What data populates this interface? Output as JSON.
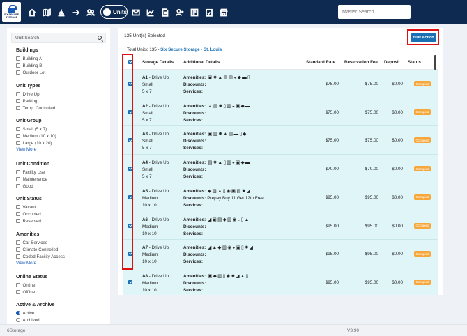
{
  "brand": {
    "logo_text": "SIX SECURE STORAGE"
  },
  "nav": {
    "active_label": "Units",
    "search_placeholder": "Master Search..."
  },
  "sidebar": {
    "search_placeholder": "Unit Search",
    "groups": [
      {
        "title": "Buildings",
        "options": [
          "Building A",
          "Building B",
          "Outdoor Lot"
        ]
      },
      {
        "title": "Unit Types",
        "options": [
          "Drive Up",
          "Parking",
          "Temp. Controlled"
        ]
      },
      {
        "title": "Unit Group",
        "options": [
          "Small (5 x 7)",
          "Medium (10 x 10)",
          "Large (10 x 20)"
        ],
        "more": "View More"
      },
      {
        "title": "Unit Condition",
        "options": [
          "Facility Use",
          "Maintenance",
          "Good"
        ]
      },
      {
        "title": "Unit Status",
        "options": [
          "Vacant",
          "Occupied",
          "Reserved"
        ]
      },
      {
        "title": "Amenities",
        "options": [
          "Car Services",
          "Climate Controlled",
          "Coded Facility Access"
        ],
        "more": "View More"
      },
      {
        "title": "Online Status",
        "options": [
          "Online",
          "Offline"
        ]
      },
      {
        "title": "Active & Archive",
        "options": [
          "Active",
          "Archived"
        ],
        "selected": "Active"
      }
    ]
  },
  "main": {
    "selected_text": "135 Unit(s) Selected",
    "bulk_action_label": "Bulk Action",
    "totals_prefix": "Total Units: 135 - ",
    "totals_location": "Six Secure Storage - St. Louis",
    "columns": {
      "storage": "Storage Details",
      "additional": "Additional Details",
      "standard_rate": "Standard Rate",
      "reservation_fee": "Reservation Fee",
      "deposit": "Deposit",
      "status": "Status"
    },
    "detail_labels": {
      "amenities": "Amenities:",
      "discounts": "Discounts:",
      "services": "Services:"
    },
    "rows": [
      {
        "id": "A1",
        "type": " - Drive Up",
        "group": "Small",
        "size": "5 x 7",
        "amenity_icons": "▣✹▲▤▥◒◆▬▯",
        "discounts": "",
        "standard_rate": "$75.00",
        "reservation_fee": "$75.00",
        "deposit": "$0.00",
        "status": "Occupied"
      },
      {
        "id": "A2",
        "type": " - Drive Up",
        "group": "Small",
        "size": "5 x 7",
        "amenity_icons": "▲▤✹▯▥◒▣◆▬",
        "discounts": "",
        "standard_rate": "$75.00",
        "reservation_fee": "$75.00",
        "deposit": "$0.00",
        "status": "Occupied"
      },
      {
        "id": "A3",
        "type": " - Drive Up",
        "group": "Small",
        "size": "5 x 7",
        "amenity_icons": "▣▥✹▲▤▬▯◆",
        "discounts": "",
        "standard_rate": "$75.00",
        "reservation_fee": "$75.00",
        "deposit": "$0.00",
        "status": "Occupied"
      },
      {
        "id": "A4",
        "type": " - Drive Up",
        "group": "Small",
        "size": "5 x 7",
        "amenity_icons": "▤✹▲▯▥◒▣◆▬",
        "discounts": "",
        "standard_rate": "$70.00",
        "reservation_fee": "$70.00",
        "deposit": "$0.00",
        "status": "Occupied"
      },
      {
        "id": "A5",
        "type": " - Drive Up",
        "group": "Medium",
        "size": "10 x 10",
        "amenity_icons": "◆▥▲▯◉▣▤✹◢",
        "discounts": "Prepay Buy 11 Get 12th Free",
        "standard_rate": "$95.00",
        "reservation_fee": "$95.00",
        "deposit": "$0.00",
        "status": "Occupied"
      },
      {
        "id": "A6",
        "type": " - Drive Up",
        "group": "Medium",
        "size": "10 x 10",
        "amenity_icons": "◢▣▤◆▥◉◒▯▲",
        "discounts": "",
        "standard_rate": "$95.00",
        "reservation_fee": "$95.00",
        "deposit": "$0.00",
        "status": "Occupied"
      },
      {
        "id": "A7",
        "type": " - Drive Up",
        "group": "Medium",
        "size": "10 x 10",
        "amenity_icons": "◢▲◆▥◉◒▣▯✹◢",
        "discounts": "",
        "standard_rate": "$95.00",
        "reservation_fee": "$95.00",
        "deposit": "$0.00",
        "status": "Occupied"
      },
      {
        "id": "A8",
        "type": " - Drive Up",
        "group": "Medium",
        "size": "10 x 10",
        "amenity_icons": "▣◆▥▯◉✹◢▲▯",
        "discounts": "",
        "standard_rate": "$95.00",
        "reservation_fee": "$95.00",
        "deposit": "$0.00",
        "status": "Occupied"
      }
    ]
  },
  "footer": {
    "left": "6Storage",
    "right": "V3.90"
  },
  "colors": {
    "navy": "#0f2a50",
    "accent": "#1b6fb3",
    "row_bg": "#dff5f8",
    "occupied": "#f7a63a",
    "highlight": "#dd1111"
  }
}
